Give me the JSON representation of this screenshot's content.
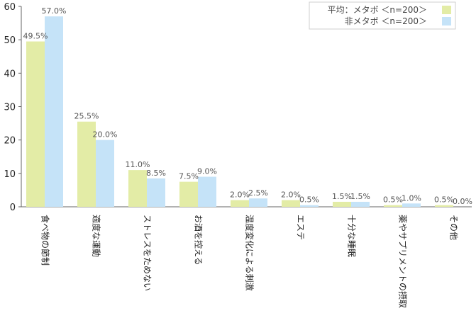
{
  "chart_data": {
    "type": "bar",
    "categories": [
      "食べ物の節制",
      "適度な運動",
      "ストレスをためない",
      "お酒を控える",
      "温度変化による刺激",
      "エステ",
      "十分な睡眠",
      "薬やサプリメントの摂取",
      "その他"
    ],
    "series": [
      {
        "name": "平均：メタボ <n=200>",
        "values": [
          49.5,
          25.5,
          11.0,
          7.5,
          2.0,
          2.0,
          1.5,
          0.5,
          0.5
        ],
        "labels": [
          "49.5%",
          "25.5%",
          "11.0%",
          "7.5%",
          "2.0%",
          "2.0%",
          "1.5%",
          "0.5%",
          "0.5%"
        ]
      },
      {
        "name": "非メタボ <n=200>",
        "values": [
          57.0,
          20.0,
          8.5,
          9.0,
          2.5,
          0.5,
          1.5,
          1.0,
          0.0
        ],
        "labels": [
          "57.0%",
          "20.0%",
          "8.5%",
          "9.0%",
          "2.5%",
          "0.5%",
          "1.5%",
          "1.0%",
          "0.0%"
        ]
      }
    ],
    "ylim": [
      0,
      60
    ],
    "yticks": [
      "0",
      "10",
      "20",
      "30",
      "40",
      "50",
      "60"
    ],
    "colors": [
      "#e3eca6",
      "#c5e3f8"
    ],
    "legend": {
      "placement": "top-right",
      "entries": [
        "平均：メタボ ＜n=200＞",
        "非メタボ ＜n=200＞"
      ]
    },
    "grid": false
  }
}
